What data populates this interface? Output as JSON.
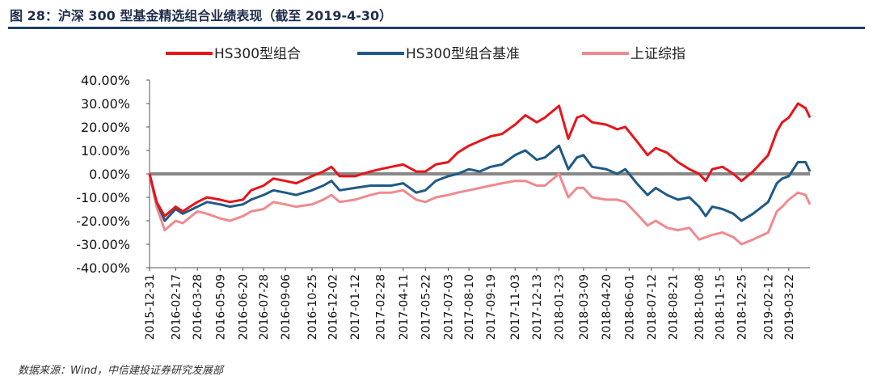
{
  "figure": {
    "title": "图 28：沪深 300 型基金精选组合业绩表现（截至 2019-4-30）",
    "source": "数据来源：Wind，中信建投证券研究发展部"
  },
  "chart_data": {
    "type": "line",
    "ylim": [
      -40,
      40
    ],
    "y_ticks": [
      40,
      30,
      20,
      10,
      0,
      -10,
      -20,
      -30,
      -40
    ],
    "y_tick_labels": [
      "40.00%",
      "30.00%",
      "20.00%",
      "10.00%",
      "0.00%",
      "-10.00%",
      "-20.00%",
      "-30.00%",
      "-40.00%"
    ],
    "x_tick_labels": [
      "2015-12-31",
      "2016-02-17",
      "2016-03-28",
      "2016-05-09",
      "2016-06-20",
      "2016-07-28",
      "2016-09-06",
      "2016-10-25",
      "2016-12-02",
      "2017-01-12",
      "2017-02-28",
      "2017-04-11",
      "2017-05-22",
      "2017-07-03",
      "2017-08-10",
      "2017-09-19",
      "2017-11-03",
      "2017-12-13",
      "2018-01-23",
      "2018-03-09",
      "2018-04-20",
      "2018-06-01",
      "2018-07-12",
      "2018-08-21",
      "2018-10-08",
      "2018-11-15",
      "2018-12-25",
      "2019-02-12",
      "2019-03-22"
    ],
    "x_range": [
      "2015-12-31",
      "2019-04-30"
    ],
    "grid": false,
    "zero_line": true,
    "legend_position": "top",
    "series": [
      {
        "name": "HS300型组合",
        "color": "#e8141a",
        "points": [
          [
            "2015-12-31",
            0
          ],
          [
            "2016-01-13",
            -12
          ],
          [
            "2016-01-28",
            -18
          ],
          [
            "2016-02-17",
            -14
          ],
          [
            "2016-03-01",
            -16
          ],
          [
            "2016-03-28",
            -12
          ],
          [
            "2016-04-15",
            -10
          ],
          [
            "2016-05-09",
            -11
          ],
          [
            "2016-05-27",
            -12
          ],
          [
            "2016-06-20",
            -11
          ],
          [
            "2016-07-05",
            -7
          ],
          [
            "2016-07-28",
            -5
          ],
          [
            "2016-08-15",
            -2
          ],
          [
            "2016-09-06",
            -3
          ],
          [
            "2016-09-26",
            -4
          ],
          [
            "2016-10-25",
            -1
          ],
          [
            "2016-11-15",
            1
          ],
          [
            "2016-11-30",
            3
          ],
          [
            "2016-12-15",
            -1
          ],
          [
            "2017-01-12",
            -1
          ],
          [
            "2017-02-10",
            1
          ],
          [
            "2017-02-28",
            2
          ],
          [
            "2017-03-20",
            3
          ],
          [
            "2017-04-11",
            4
          ],
          [
            "2017-05-05",
            1
          ],
          [
            "2017-05-22",
            1
          ],
          [
            "2017-06-10",
            4
          ],
          [
            "2017-07-03",
            5
          ],
          [
            "2017-07-20",
            9
          ],
          [
            "2017-08-10",
            12
          ],
          [
            "2017-08-30",
            14
          ],
          [
            "2017-09-19",
            16
          ],
          [
            "2017-10-10",
            17
          ],
          [
            "2017-11-03",
            21
          ],
          [
            "2017-11-22",
            25
          ],
          [
            "2017-12-13",
            22
          ],
          [
            "2017-12-28",
            24
          ],
          [
            "2018-01-23",
            29
          ],
          [
            "2018-02-09",
            15
          ],
          [
            "2018-02-25",
            24
          ],
          [
            "2018-03-09",
            25
          ],
          [
            "2018-03-25",
            22
          ],
          [
            "2018-04-20",
            21
          ],
          [
            "2018-05-10",
            19
          ],
          [
            "2018-05-25",
            20
          ],
          [
            "2018-06-15",
            14
          ],
          [
            "2018-07-05",
            8
          ],
          [
            "2018-07-20",
            11
          ],
          [
            "2018-08-10",
            9
          ],
          [
            "2018-08-30",
            5
          ],
          [
            "2018-09-20",
            2
          ],
          [
            "2018-10-08",
            0
          ],
          [
            "2018-10-20",
            -3
          ],
          [
            "2018-11-01",
            2
          ],
          [
            "2018-11-20",
            3
          ],
          [
            "2018-12-10",
            0
          ],
          [
            "2018-12-25",
            -3
          ],
          [
            "2019-01-15",
            1
          ],
          [
            "2019-02-12",
            8
          ],
          [
            "2019-02-28",
            18
          ],
          [
            "2019-03-10",
            22
          ],
          [
            "2019-03-22",
            24
          ],
          [
            "2019-04-08",
            30
          ],
          [
            "2019-04-22",
            28
          ],
          [
            "2019-04-30",
            24
          ]
        ]
      },
      {
        "name": "HS300型组合基准",
        "color": "#1f5a86",
        "points": [
          [
            "2015-12-31",
            0
          ],
          [
            "2016-01-13",
            -12
          ],
          [
            "2016-01-28",
            -20
          ],
          [
            "2016-02-17",
            -15
          ],
          [
            "2016-03-01",
            -17
          ],
          [
            "2016-03-28",
            -14
          ],
          [
            "2016-04-15",
            -12
          ],
          [
            "2016-05-09",
            -13
          ],
          [
            "2016-05-27",
            -14
          ],
          [
            "2016-06-20",
            -13
          ],
          [
            "2016-07-05",
            -11
          ],
          [
            "2016-07-28",
            -9
          ],
          [
            "2016-08-15",
            -7
          ],
          [
            "2016-09-06",
            -8
          ],
          [
            "2016-09-26",
            -9
          ],
          [
            "2016-10-25",
            -7
          ],
          [
            "2016-11-15",
            -5
          ],
          [
            "2016-11-30",
            -3
          ],
          [
            "2016-12-15",
            -7
          ],
          [
            "2017-01-12",
            -6
          ],
          [
            "2017-02-10",
            -5
          ],
          [
            "2017-02-28",
            -5
          ],
          [
            "2017-03-20",
            -5
          ],
          [
            "2017-04-11",
            -4
          ],
          [
            "2017-05-05",
            -8
          ],
          [
            "2017-05-22",
            -7
          ],
          [
            "2017-06-10",
            -3
          ],
          [
            "2017-07-03",
            -1
          ],
          [
            "2017-07-20",
            0
          ],
          [
            "2017-08-10",
            2
          ],
          [
            "2017-08-30",
            1
          ],
          [
            "2017-09-19",
            3
          ],
          [
            "2017-10-10",
            4
          ],
          [
            "2017-11-03",
            8
          ],
          [
            "2017-11-22",
            10
          ],
          [
            "2017-12-13",
            6
          ],
          [
            "2017-12-28",
            7
          ],
          [
            "2018-01-23",
            12
          ],
          [
            "2018-02-09",
            2
          ],
          [
            "2018-02-25",
            7
          ],
          [
            "2018-03-09",
            8
          ],
          [
            "2018-03-25",
            3
          ],
          [
            "2018-04-20",
            2
          ],
          [
            "2018-05-10",
            0
          ],
          [
            "2018-05-25",
            2
          ],
          [
            "2018-06-15",
            -4
          ],
          [
            "2018-07-05",
            -9
          ],
          [
            "2018-07-20",
            -6
          ],
          [
            "2018-08-10",
            -9
          ],
          [
            "2018-08-30",
            -11
          ],
          [
            "2018-09-20",
            -10
          ],
          [
            "2018-10-08",
            -14
          ],
          [
            "2018-10-20",
            -18
          ],
          [
            "2018-11-01",
            -14
          ],
          [
            "2018-11-20",
            -15
          ],
          [
            "2018-12-10",
            -17
          ],
          [
            "2018-12-25",
            -20
          ],
          [
            "2019-01-15",
            -17
          ],
          [
            "2019-02-12",
            -12
          ],
          [
            "2019-02-28",
            -4
          ],
          [
            "2019-03-10",
            -2
          ],
          [
            "2019-03-22",
            -1
          ],
          [
            "2019-04-08",
            5
          ],
          [
            "2019-04-22",
            5
          ],
          [
            "2019-04-30",
            1
          ]
        ]
      },
      {
        "name": "上证综指",
        "color": "#f08a8f",
        "points": [
          [
            "2015-12-31",
            0
          ],
          [
            "2016-01-13",
            -14
          ],
          [
            "2016-01-28",
            -24
          ],
          [
            "2016-02-17",
            -20
          ],
          [
            "2016-03-01",
            -21
          ],
          [
            "2016-03-28",
            -16
          ],
          [
            "2016-04-15",
            -17
          ],
          [
            "2016-05-09",
            -19
          ],
          [
            "2016-05-27",
            -20
          ],
          [
            "2016-06-20",
            -18
          ],
          [
            "2016-07-05",
            -16
          ],
          [
            "2016-07-28",
            -15
          ],
          [
            "2016-08-15",
            -12
          ],
          [
            "2016-09-06",
            -13
          ],
          [
            "2016-09-26",
            -14
          ],
          [
            "2016-10-25",
            -13
          ],
          [
            "2016-11-15",
            -11
          ],
          [
            "2016-11-30",
            -9
          ],
          [
            "2016-12-15",
            -12
          ],
          [
            "2017-01-12",
            -11
          ],
          [
            "2017-02-10",
            -9
          ],
          [
            "2017-02-28",
            -8
          ],
          [
            "2017-03-20",
            -8
          ],
          [
            "2017-04-11",
            -7
          ],
          [
            "2017-05-05",
            -11
          ],
          [
            "2017-05-22",
            -12
          ],
          [
            "2017-06-10",
            -10
          ],
          [
            "2017-07-03",
            -9
          ],
          [
            "2017-07-20",
            -8
          ],
          [
            "2017-08-10",
            -7
          ],
          [
            "2017-08-30",
            -6
          ],
          [
            "2017-09-19",
            -5
          ],
          [
            "2017-10-10",
            -4
          ],
          [
            "2017-11-03",
            -3
          ],
          [
            "2017-11-22",
            -3
          ],
          [
            "2017-12-13",
            -5
          ],
          [
            "2017-12-28",
            -5
          ],
          [
            "2018-01-23",
            0
          ],
          [
            "2018-02-09",
            -10
          ],
          [
            "2018-02-25",
            -6
          ],
          [
            "2018-03-09",
            -6
          ],
          [
            "2018-03-25",
            -10
          ],
          [
            "2018-04-20",
            -11
          ],
          [
            "2018-05-10",
            -11
          ],
          [
            "2018-05-25",
            -12
          ],
          [
            "2018-06-15",
            -17
          ],
          [
            "2018-07-05",
            -22
          ],
          [
            "2018-07-20",
            -20
          ],
          [
            "2018-08-10",
            -23
          ],
          [
            "2018-08-30",
            -24
          ],
          [
            "2018-09-20",
            -23
          ],
          [
            "2018-10-08",
            -28
          ],
          [
            "2018-10-20",
            -27
          ],
          [
            "2018-11-01",
            -26
          ],
          [
            "2018-11-20",
            -25
          ],
          [
            "2018-12-10",
            -27
          ],
          [
            "2018-12-25",
            -30
          ],
          [
            "2019-01-15",
            -28
          ],
          [
            "2019-02-12",
            -25
          ],
          [
            "2019-02-28",
            -16
          ],
          [
            "2019-03-10",
            -14
          ],
          [
            "2019-03-22",
            -11
          ],
          [
            "2019-04-08",
            -8
          ],
          [
            "2019-04-22",
            -9
          ],
          [
            "2019-04-30",
            -13
          ]
        ]
      }
    ]
  }
}
